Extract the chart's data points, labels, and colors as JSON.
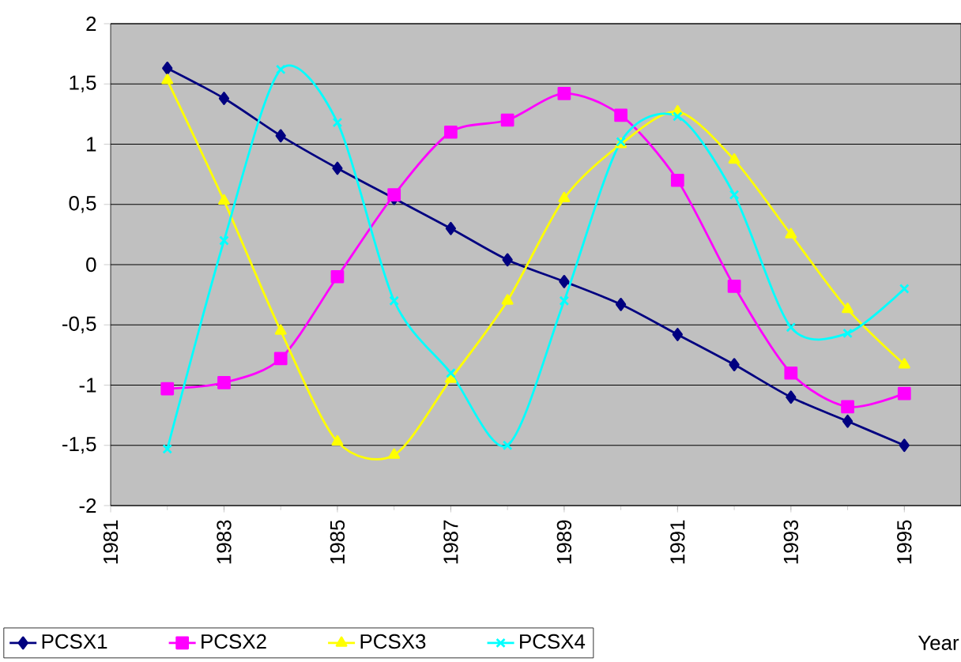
{
  "chart_data": {
    "type": "line",
    "xlabel": "Year",
    "x": [
      1982,
      1983,
      1984,
      1985,
      1986,
      1987,
      1988,
      1989,
      1990,
      1991,
      1992,
      1993,
      1994,
      1995
    ],
    "xlim": [
      1981,
      1996
    ],
    "xticks": [
      1981,
      1983,
      1985,
      1987,
      1989,
      1991,
      1993,
      1995
    ],
    "ylim": [
      -2,
      2
    ],
    "yticks": [
      -2,
      {
        "value": -1.5,
        "label": "-1,5"
      },
      -1,
      {
        "value": -0.5,
        "label": "-0,5"
      },
      0,
      {
        "value": 0.5,
        "label": "0,5"
      },
      1,
      {
        "value": 1.5,
        "label": "1,5"
      },
      2
    ],
    "grid": "y",
    "legend": "bottom",
    "line_style": "solid",
    "series": [
      {
        "name": "PCSX1",
        "color": "#000080",
        "marker": "diamond",
        "values": [
          1.63,
          1.38,
          1.07,
          0.8,
          0.55,
          0.3,
          0.04,
          -0.14,
          -0.33,
          -0.58,
          -0.83,
          -1.1,
          -1.3,
          -1.5
        ]
      },
      {
        "name": "PCSX2",
        "color": "#ff00ff",
        "marker": "square",
        "values": [
          -1.03,
          -0.98,
          -0.78,
          -0.1,
          0.58,
          1.1,
          1.2,
          1.42,
          1.24,
          0.7,
          -0.18,
          -0.9,
          -1.18,
          -1.07
        ]
      },
      {
        "name": "PCSX3",
        "color": "#ffff00",
        "marker": "triangle",
        "values": [
          1.53,
          0.53,
          -0.55,
          -1.47,
          -1.58,
          -0.95,
          -0.3,
          0.55,
          1.0,
          1.27,
          0.87,
          0.25,
          -0.37,
          -0.83
        ]
      },
      {
        "name": "PCSX4",
        "color": "#00ffff",
        "marker": "cross",
        "values": [
          -1.53,
          0.2,
          1.62,
          1.18,
          -0.3,
          -0.9,
          -1.5,
          -0.3,
          1.02,
          1.23,
          0.58,
          -0.52,
          -0.57,
          -0.2
        ]
      }
    ]
  }
}
